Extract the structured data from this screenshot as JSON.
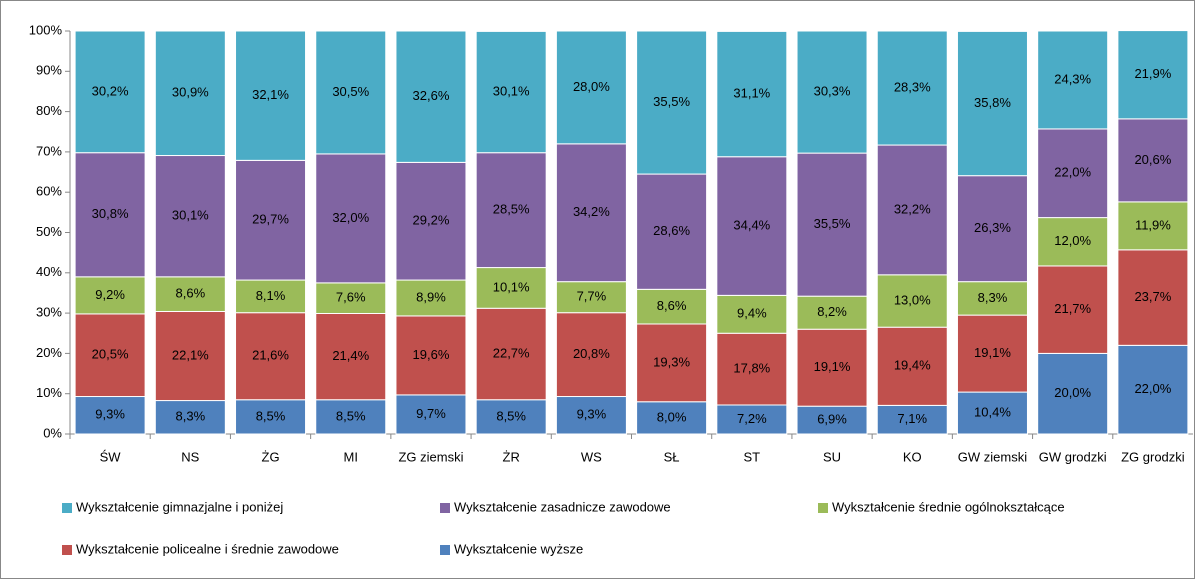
{
  "chart_data": {
    "type": "stacked_bar_100",
    "categories": [
      "ŚW",
      "NS",
      "ŻG",
      "MI",
      "ZG ziemski",
      "ŻR",
      "WS",
      "SŁ",
      "ST",
      "SU",
      "KO",
      "GW ziemski",
      "GW grodzki",
      "ZG grodzki"
    ],
    "series": [
      {
        "name": "Wykształcenie gimnazjalne i poniżej",
        "color": "#4bacc6",
        "values": [
          30.2,
          30.9,
          32.1,
          30.5,
          32.6,
          30.1,
          28.0,
          35.5,
          31.1,
          30.3,
          28.3,
          35.8,
          24.3,
          21.9
        ],
        "value_labels": [
          "30,2%",
          "30,9%",
          "32,1%",
          "30,5%",
          "32,6%",
          "30,1%",
          "28,0%",
          "35,5%",
          "31,1%",
          "30,3%",
          "28,3%",
          "35,8%",
          "24,3%",
          "21,9%"
        ]
      },
      {
        "name": "Wykształcenie zasadnicze zawodowe",
        "color": "#8064a2",
        "values": [
          30.8,
          30.1,
          29.7,
          32.0,
          29.2,
          28.5,
          34.2,
          28.6,
          34.4,
          35.5,
          32.2,
          26.3,
          22.0,
          20.6
        ],
        "value_labels": [
          "30,8%",
          "30,1%",
          "29,7%",
          "32,0%",
          "29,2%",
          "28,5%",
          "34,2%",
          "28,6%",
          "34,4%",
          "35,5%",
          "32,2%",
          "26,3%",
          "22,0%",
          "20,6%"
        ]
      },
      {
        "name": "Wykształcenie średnie ogólnokształcące",
        "color": "#9bbb59",
        "values": [
          9.2,
          8.6,
          8.1,
          7.6,
          8.9,
          10.1,
          7.7,
          8.6,
          9.4,
          8.2,
          13.0,
          8.3,
          12.0,
          11.9
        ],
        "value_labels": [
          "9,2%",
          "8,6%",
          "8,1%",
          "7,6%",
          "8,9%",
          "10,1%",
          "7,7%",
          "8,6%",
          "9,4%",
          "8,2%",
          "13,0%",
          "8,3%",
          "12,0%",
          "11,9%"
        ]
      },
      {
        "name": "Wykształcenie policealne i średnie zawodowe",
        "color": "#c0504d",
        "values": [
          20.5,
          22.1,
          21.6,
          21.4,
          19.6,
          22.7,
          20.8,
          19.3,
          17.8,
          19.1,
          19.4,
          19.1,
          21.7,
          23.7
        ],
        "value_labels": [
          "20,5%",
          "22,1%",
          "21,6%",
          "21,4%",
          "19,6%",
          "22,7%",
          "20,8%",
          "19,3%",
          "17,8%",
          "19,1%",
          "19,4%",
          "19,1%",
          "21,7%",
          "23,7%"
        ]
      },
      {
        "name": "Wykształcenie wyższe",
        "color": "#4f81bd",
        "values": [
          9.3,
          8.3,
          8.5,
          8.5,
          9.7,
          8.5,
          9.3,
          8.0,
          7.2,
          6.9,
          7.1,
          10.4,
          20.0,
          22.0
        ],
        "value_labels": [
          "9,3%",
          "8,3%",
          "8,5%",
          "8,5%",
          "9,7%",
          "8,5%",
          "9,3%",
          "8,0%",
          "7,2%",
          "6,9%",
          "7,1%",
          "10,4%",
          "20,0%",
          "22,0%"
        ]
      }
    ],
    "ylim": [
      0,
      100
    ],
    "yticks": [
      {
        "value": 0,
        "label": "0%"
      },
      {
        "value": 10,
        "label": "10%"
      },
      {
        "value": 20,
        "label": "20%"
      },
      {
        "value": 30,
        "label": "30%"
      },
      {
        "value": 40,
        "label": "40%"
      },
      {
        "value": 50,
        "label": "50%"
      },
      {
        "value": 60,
        "label": "60%"
      },
      {
        "value": 70,
        "label": "70%"
      },
      {
        "value": 80,
        "label": "80%"
      },
      {
        "value": 90,
        "label": "90%"
      },
      {
        "value": 100,
        "label": "100%"
      }
    ],
    "legend": "bottom"
  }
}
